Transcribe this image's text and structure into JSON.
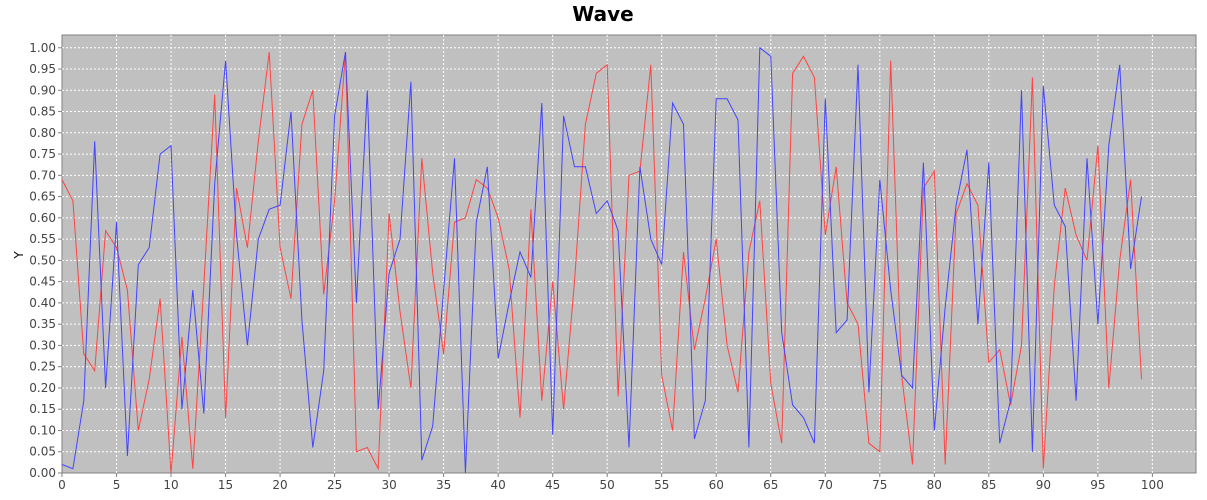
{
  "chart_data": {
    "type": "line",
    "title": "Wave",
    "xlabel": "",
    "ylabel": "Y",
    "xlim": [
      0,
      104
    ],
    "ylim": [
      0,
      1.03
    ],
    "x_ticks": [
      0,
      5,
      10,
      15,
      20,
      25,
      30,
      35,
      40,
      45,
      50,
      55,
      60,
      65,
      70,
      75,
      80,
      85,
      90,
      95,
      100
    ],
    "y_ticks": [
      "0.00",
      "0.05",
      "0.10",
      "0.15",
      "0.20",
      "0.25",
      "0.30",
      "0.35",
      "0.40",
      "0.45",
      "0.50",
      "0.55",
      "0.60",
      "0.65",
      "0.70",
      "0.75",
      "0.80",
      "0.85",
      "0.90",
      "0.95",
      "1.00"
    ],
    "grid": true,
    "plot_background": "#c0c0c0",
    "x": [
      0,
      1,
      2,
      3,
      4,
      5,
      6,
      7,
      8,
      9,
      10,
      11,
      12,
      13,
      14,
      15,
      16,
      17,
      18,
      19,
      20,
      21,
      22,
      23,
      24,
      25,
      26,
      27,
      28,
      29,
      30,
      31,
      32,
      33,
      34,
      35,
      36,
      37,
      38,
      39,
      40,
      41,
      42,
      43,
      44,
      45,
      46,
      47,
      48,
      49,
      50,
      51,
      52,
      53,
      54,
      55,
      56,
      57,
      58,
      59,
      60,
      61,
      62,
      63,
      64,
      65,
      66,
      67,
      68,
      69,
      70,
      71,
      72,
      73,
      74,
      75,
      76,
      77,
      78,
      79,
      80,
      81,
      82,
      83,
      84,
      85,
      86,
      87,
      88,
      89,
      90,
      91,
      92,
      93,
      94,
      95,
      96,
      97,
      98,
      99
    ],
    "series": [
      {
        "color": "#ff4444",
        "values": [
          0.69,
          0.64,
          0.28,
          0.24,
          0.57,
          0.53,
          0.43,
          0.1,
          0.22,
          0.41,
          0.0,
          0.32,
          0.01,
          0.44,
          0.89,
          0.13,
          0.67,
          0.53,
          0.78,
          0.99,
          0.53,
          0.41,
          0.82,
          0.9,
          0.42,
          0.64,
          0.99,
          0.05,
          0.06,
          0.01,
          0.61,
          0.38,
          0.2,
          0.74,
          0.47,
          0.28,
          0.59,
          0.6,
          0.69,
          0.67,
          0.6,
          0.48,
          0.13,
          0.62,
          0.17,
          0.45,
          0.15,
          0.45,
          0.82,
          0.94,
          0.96,
          0.18,
          0.7,
          0.71,
          0.96,
          0.23,
          0.1,
          0.52,
          0.29,
          0.41,
          0.55,
          0.3,
          0.19,
          0.52,
          0.64,
          0.21,
          0.07,
          0.94,
          0.98,
          0.93,
          0.56,
          0.72,
          0.4,
          0.35,
          0.07,
          0.05,
          0.97,
          0.23,
          0.02,
          0.67,
          0.71,
          0.02,
          0.61,
          0.68,
          0.63,
          0.26,
          0.29,
          0.16,
          0.3,
          0.93,
          0.01,
          0.44,
          0.67,
          0.56,
          0.5,
          0.77,
          0.2,
          0.5,
          0.69,
          0.22
        ]
      },
      {
        "color": "#4444ff",
        "values": [
          0.02,
          0.01,
          0.17,
          0.78,
          0.2,
          0.59,
          0.04,
          0.49,
          0.53,
          0.75,
          0.77,
          0.15,
          0.43,
          0.14,
          0.68,
          0.97,
          0.56,
          0.3,
          0.55,
          0.62,
          0.63,
          0.85,
          0.36,
          0.06,
          0.24,
          0.84,
          0.99,
          0.4,
          0.9,
          0.15,
          0.47,
          0.55,
          0.92,
          0.03,
          0.11,
          0.43,
          0.74,
          0.0,
          0.59,
          0.72,
          0.27,
          0.4,
          0.52,
          0.46,
          0.87,
          0.09,
          0.84,
          0.72,
          0.72,
          0.61,
          0.64,
          0.57,
          0.06,
          0.72,
          0.55,
          0.49,
          0.87,
          0.82,
          0.08,
          0.17,
          0.88,
          0.88,
          0.83,
          0.06,
          1.0,
          0.98,
          0.33,
          0.16,
          0.13,
          0.07,
          0.88,
          0.33,
          0.36,
          0.96,
          0.19,
          0.69,
          0.43,
          0.23,
          0.2,
          0.73,
          0.1,
          0.39,
          0.63,
          0.76,
          0.35,
          0.73,
          0.07,
          0.17,
          0.9,
          0.05,
          0.91,
          0.63,
          0.58,
          0.17,
          0.74,
          0.35,
          0.77,
          0.96,
          0.48,
          0.65
        ]
      }
    ]
  }
}
